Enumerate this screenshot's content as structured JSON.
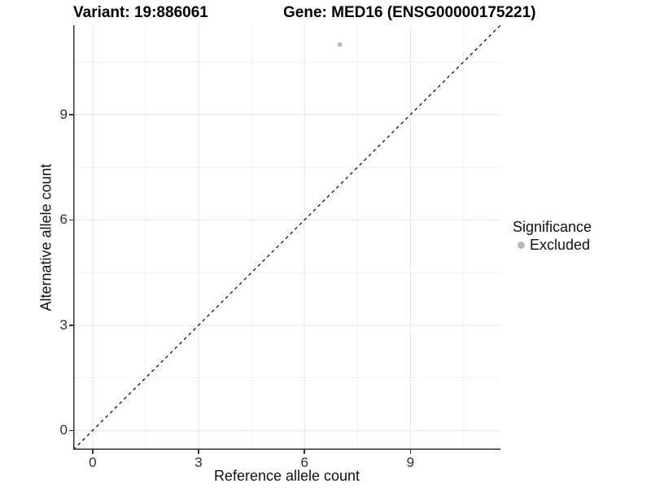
{
  "titles": {
    "variant": "Variant: 19:886061",
    "gene": "Gene: MED16 (ENSG00000175221)"
  },
  "axes": {
    "x": {
      "label": "Reference allele count",
      "tick_labels": [
        "0",
        "3",
        "6",
        "9"
      ]
    },
    "y": {
      "label": "Alternative allele count",
      "tick_labels": [
        "0",
        "3",
        "6",
        "9"
      ]
    }
  },
  "legend": {
    "title": "Significance",
    "items": [
      {
        "label": "Excluded",
        "color": "#b8b8b8"
      }
    ]
  },
  "colors": {
    "background": "#ffffff",
    "title_text": "#000000",
    "axis_text": "#303030",
    "axis_line": "#333333",
    "grid_major": "#e4e4e4",
    "grid_minor": "#f1f1f1",
    "reference_line": "#000000",
    "point_excluded": "#b8b8b8"
  },
  "chart_data": {
    "type": "scatter",
    "title": "Variant: 19:886061 | Gene: MED16 (ENSG00000175221)",
    "xlabel": "Reference allele count",
    "ylabel": "Alternative allele count",
    "xlim": [
      -0.55,
      11.55
    ],
    "ylim": [
      -0.55,
      11.55
    ],
    "x_ticks": [
      0,
      3,
      6,
      9
    ],
    "y_ticks": [
      0,
      3,
      6,
      9
    ],
    "x_minor_ticks": [
      1.5,
      4.5,
      7.5,
      10.5
    ],
    "y_minor_ticks": [
      1.5,
      4.5,
      7.5,
      10.5
    ],
    "grid": "major-and-minor",
    "legend_position": "right",
    "reference_line": {
      "style": "dashed",
      "equation": "y = x",
      "color": "#000000"
    },
    "series": [
      {
        "name": "Excluded",
        "color": "#b8b8b8",
        "points": [
          {
            "x": 7,
            "y": 11
          }
        ]
      }
    ]
  }
}
